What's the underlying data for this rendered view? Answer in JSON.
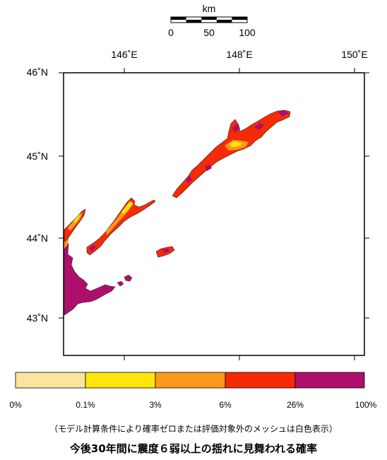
{
  "scale_bar": {
    "unit": "km",
    "ticks": [
      "0",
      "50",
      "100"
    ]
  },
  "longitude_labels": [
    "146˚E",
    "148˚E",
    "150˚E"
  ],
  "latitude_labels": [
    "46˚N",
    "45˚N",
    "44˚N",
    "43˚N"
  ],
  "legend": {
    "colors": [
      "#fae4a0",
      "#fee50a",
      "#fb9a1a",
      "#f72a06",
      "#ae0f6c"
    ],
    "labels": [
      "0%",
      "0.1%",
      "3%",
      "6%",
      "26%",
      "100%"
    ]
  },
  "note": "（モデル計算条件により確率ゼロまたは評価対象外のメッシュは白色表示）",
  "title": "今後30年間に震度６弱以上の揺れに見舞われる確率"
}
